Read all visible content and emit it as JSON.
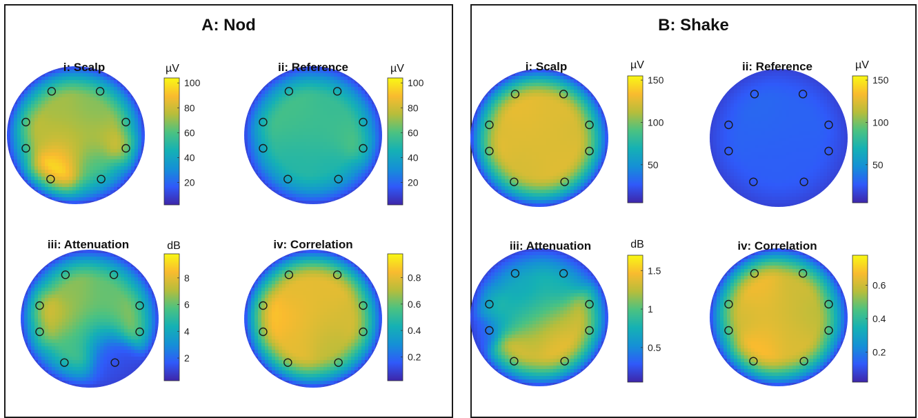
{
  "colors": {
    "colormap": [
      "#3e26a8",
      "#2f5af9",
      "#1590d6",
      "#15b1b4",
      "#4cc281",
      "#b7bd3b",
      "#f9bb2f",
      "#f9f814"
    ],
    "electrode_stroke": "#1a1a1a"
  },
  "panels": [
    {
      "id": "A",
      "title": "A: Nod"
    },
    {
      "id": "B",
      "title": "B: Shake"
    }
  ],
  "chart_data": [
    {
      "type": "heatmap",
      "panel": "A",
      "title": "i: Scalp",
      "colorbar_label": "µV",
      "clim": [
        2,
        104
      ],
      "ticks": [
        20,
        40,
        60,
        80,
        100
      ],
      "electrodes": [
        {
          "x": -0.45,
          "y": 0.67,
          "value": 72
        },
        {
          "x": 0.45,
          "y": 0.67,
          "value": 68
        },
        {
          "x": -0.93,
          "y": 0.2,
          "value": 78
        },
        {
          "x": 0.93,
          "y": 0.2,
          "value": 70
        },
        {
          "x": -0.93,
          "y": -0.2,
          "value": 70
        },
        {
          "x": 0.93,
          "y": -0.2,
          "value": 88
        },
        {
          "x": -0.47,
          "y": -0.67,
          "value": 98
        },
        {
          "x": 0.47,
          "y": -0.67,
          "value": 58
        }
      ]
    },
    {
      "type": "heatmap",
      "panel": "A",
      "title": "ii: Reference",
      "colorbar_label": "µV",
      "clim": [
        2,
        104
      ],
      "ticks": [
        20,
        40,
        60,
        80,
        100
      ],
      "electrodes": [
        {
          "x": -0.45,
          "y": 0.67,
          "value": 58
        },
        {
          "x": 0.45,
          "y": 0.67,
          "value": 55
        },
        {
          "x": -0.93,
          "y": 0.2,
          "value": 60
        },
        {
          "x": 0.93,
          "y": 0.2,
          "value": 56
        },
        {
          "x": -0.93,
          "y": -0.2,
          "value": 52
        },
        {
          "x": 0.93,
          "y": -0.2,
          "value": 64
        },
        {
          "x": -0.47,
          "y": -0.67,
          "value": 50
        },
        {
          "x": 0.47,
          "y": -0.67,
          "value": 48
        }
      ]
    },
    {
      "type": "heatmap",
      "panel": "A",
      "title": "iii: Attenuation",
      "colorbar_label": "dB",
      "clim": [
        0.3,
        9.8
      ],
      "ticks": [
        2,
        4,
        6,
        8
      ],
      "electrodes": [
        {
          "x": -0.45,
          "y": 0.67,
          "value": 6.5
        },
        {
          "x": 0.45,
          "y": 0.67,
          "value": 6
        },
        {
          "x": -0.93,
          "y": 0.2,
          "value": 8.2
        },
        {
          "x": 0.93,
          "y": 0.2,
          "value": 6.5
        },
        {
          "x": -0.93,
          "y": -0.2,
          "value": 7.2
        },
        {
          "x": 0.93,
          "y": -0.2,
          "value": 7
        },
        {
          "x": -0.47,
          "y": -0.67,
          "value": 5.5
        },
        {
          "x": 0.47,
          "y": -0.67,
          "value": 1.5
        }
      ]
    },
    {
      "type": "heatmap",
      "panel": "A",
      "title": "iv: Correlation",
      "colorbar_label": "",
      "clim": [
        0.02,
        0.98
      ],
      "ticks": [
        0.2,
        0.4,
        0.6,
        0.8
      ],
      "ticklabels": [
        "0.2",
        "0.4",
        "0.6",
        "0.8"
      ],
      "electrodes": [
        {
          "x": -0.45,
          "y": 0.67,
          "value": 0.8
        },
        {
          "x": 0.45,
          "y": 0.67,
          "value": 0.8
        },
        {
          "x": -0.93,
          "y": 0.2,
          "value": 0.88
        },
        {
          "x": 0.93,
          "y": 0.2,
          "value": 0.75
        },
        {
          "x": -0.93,
          "y": -0.2,
          "value": 0.86
        },
        {
          "x": 0.93,
          "y": -0.2,
          "value": 0.78
        },
        {
          "x": -0.47,
          "y": -0.67,
          "value": 0.8
        },
        {
          "x": 0.47,
          "y": -0.67,
          "value": 0.72
        }
      ]
    },
    {
      "type": "heatmap",
      "panel": "B",
      "title": "i: Scalp",
      "colorbar_label": "µV",
      "clim": [
        5,
        155
      ],
      "ticks": [
        50,
        100,
        150
      ],
      "electrodes": [
        {
          "x": -0.45,
          "y": 0.67,
          "value": 128
        },
        {
          "x": 0.45,
          "y": 0.67,
          "value": 125
        },
        {
          "x": -0.93,
          "y": 0.2,
          "value": 122
        },
        {
          "x": 0.93,
          "y": 0.2,
          "value": 120
        },
        {
          "x": -0.93,
          "y": -0.2,
          "value": 128
        },
        {
          "x": 0.93,
          "y": -0.2,
          "value": 125
        },
        {
          "x": -0.47,
          "y": -0.67,
          "value": 122
        },
        {
          "x": 0.47,
          "y": -0.67,
          "value": 125
        }
      ]
    },
    {
      "type": "heatmap",
      "panel": "B",
      "title": "ii: Reference",
      "colorbar_label": "µV",
      "clim": [
        5,
        155
      ],
      "ticks": [
        50,
        100,
        150
      ],
      "electrodes": [
        {
          "x": -0.45,
          "y": 0.67,
          "value": 32
        },
        {
          "x": 0.45,
          "y": 0.67,
          "value": 30
        },
        {
          "x": -0.93,
          "y": 0.2,
          "value": 30
        },
        {
          "x": 0.93,
          "y": 0.2,
          "value": 30
        },
        {
          "x": -0.93,
          "y": -0.2,
          "value": 30
        },
        {
          "x": 0.93,
          "y": -0.2,
          "value": 28
        },
        {
          "x": -0.47,
          "y": -0.67,
          "value": 28
        },
        {
          "x": 0.47,
          "y": -0.67,
          "value": 28
        }
      ]
    },
    {
      "type": "heatmap",
      "panel": "B",
      "title": "iii: Attenuation",
      "colorbar_label": "dB",
      "clim": [
        0.05,
        1.7
      ],
      "ticks": [
        0.5,
        1,
        1.5
      ],
      "electrodes": [
        {
          "x": -0.45,
          "y": 0.67,
          "value": 0.7
        },
        {
          "x": 0.45,
          "y": 0.67,
          "value": 0.75
        },
        {
          "x": -0.93,
          "y": 0.2,
          "value": 0.9
        },
        {
          "x": 0.93,
          "y": 0.2,
          "value": 1.3
        },
        {
          "x": -0.93,
          "y": -0.2,
          "value": 0.45
        },
        {
          "x": 0.93,
          "y": -0.2,
          "value": 1.35
        },
        {
          "x": -0.47,
          "y": -0.67,
          "value": 1.35
        },
        {
          "x": 0.47,
          "y": -0.67,
          "value": 1.4
        }
      ]
    },
    {
      "type": "heatmap",
      "panel": "B",
      "title": "iv: Correlation",
      "colorbar_label": "",
      "clim": [
        0.02,
        0.78
      ],
      "ticks": [
        0.2,
        0.4,
        0.6
      ],
      "ticklabels": [
        "0.2",
        "0.4",
        "0.6"
      ],
      "electrodes": [
        {
          "x": -0.45,
          "y": 0.67,
          "value": 0.66
        },
        {
          "x": 0.45,
          "y": 0.67,
          "value": 0.6
        },
        {
          "x": -0.93,
          "y": 0.2,
          "value": 0.62
        },
        {
          "x": 0.93,
          "y": 0.2,
          "value": 0.56
        },
        {
          "x": -0.93,
          "y": -0.2,
          "value": 0.58
        },
        {
          "x": 0.93,
          "y": -0.2,
          "value": 0.58
        },
        {
          "x": -0.47,
          "y": -0.67,
          "value": 0.68
        },
        {
          "x": 0.47,
          "y": -0.67,
          "value": 0.62
        }
      ]
    }
  ]
}
